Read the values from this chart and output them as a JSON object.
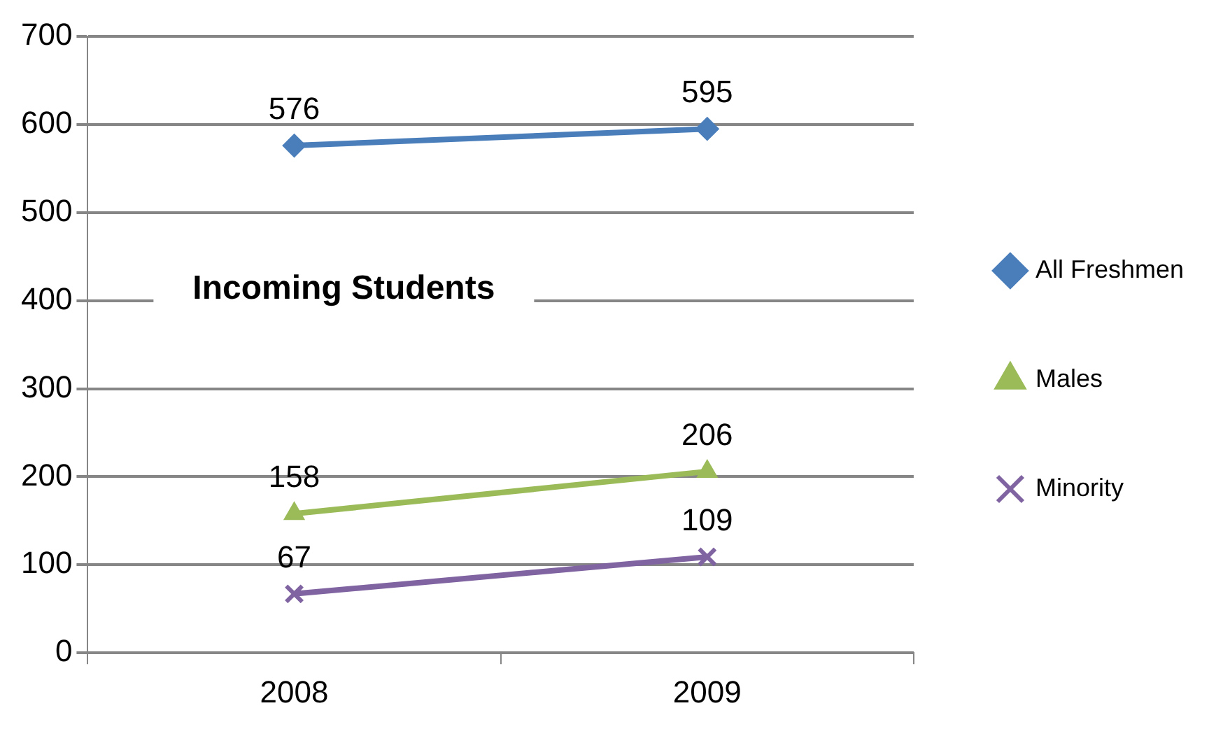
{
  "chart_data": {
    "type": "line",
    "title": "Incoming Students",
    "categories": [
      "2008",
      "2009"
    ],
    "series": [
      {
        "name": "All Freshmen",
        "color": "#4a7ebb",
        "values": [
          576,
          595
        ],
        "marker": "diamond"
      },
      {
        "name": "Males",
        "color": "#9bbb59",
        "values": [
          158,
          206
        ],
        "marker": "triangle"
      },
      {
        "name": "Minority",
        "color": "#8064a2",
        "values": [
          67,
          109
        ],
        "marker": "cross"
      }
    ],
    "ylim": [
      0,
      700
    ],
    "yticks": [
      0,
      100,
      200,
      300,
      400,
      500,
      600,
      700
    ],
    "grid": "y",
    "legend": "right",
    "data_labels": true
  }
}
